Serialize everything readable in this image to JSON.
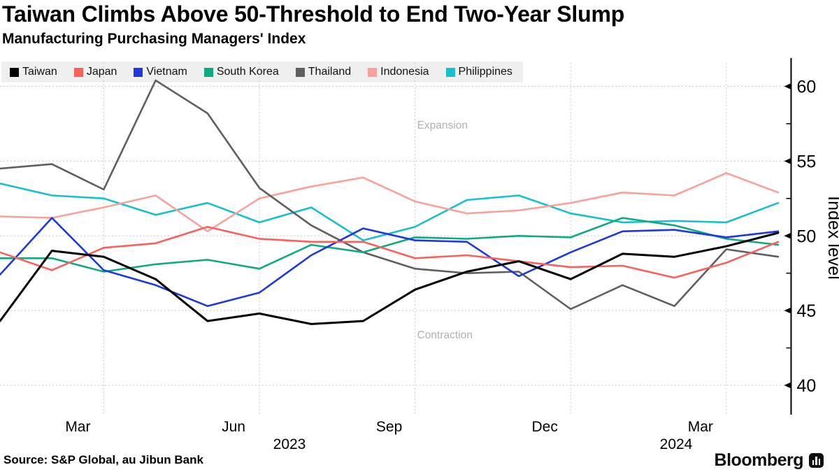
{
  "title": "Taiwan Climbs Above 50-Threshold to End Two-Year Slump",
  "subtitle": "Manufacturing Purchasing Managers' Index",
  "legend": [
    {
      "label": "Taiwan",
      "color": "#000000"
    },
    {
      "label": "Japan",
      "color": "#f9615b"
    },
    {
      "label": "Vietnam",
      "color": "#1c39e0"
    },
    {
      "label": "South Korea",
      "color": "#0faa82"
    },
    {
      "label": "Thailand",
      "color": "#5f5f5f"
    },
    {
      "label": "Indonesia",
      "color": "#f9a29b"
    },
    {
      "label": "Philippines",
      "color": "#16c0cd"
    }
  ],
  "annotations": {
    "expansion": "Expansion",
    "contraction": "Contraction"
  },
  "y_axis": {
    "label": "Index level",
    "major_ticks": [
      60,
      55,
      50,
      45,
      40
    ],
    "minor_ticks": [
      57.5,
      52.5,
      47.5,
      42.5
    ]
  },
  "x_axis": {
    "month_ticks": [
      {
        "label": "Mar",
        "month_index": 2
      },
      {
        "label": "Jun",
        "month_index": 5
      },
      {
        "label": "Sep",
        "month_index": 8
      },
      {
        "label": "Dec",
        "month_index": 11
      },
      {
        "label": "Mar",
        "month_index": 14
      }
    ],
    "year_labels": [
      {
        "label": "2023",
        "x": 414
      },
      {
        "label": "2024",
        "x": 967
      }
    ]
  },
  "source": "Source: S&P Global, au Jibun Bank",
  "brand": "Bloomberg",
  "chart_data": {
    "type": "line",
    "x": [
      "2023-01",
      "2023-02",
      "2023-03",
      "2023-04",
      "2023-05",
      "2023-06",
      "2023-07",
      "2023-08",
      "2023-09",
      "2023-10",
      "2023-11",
      "2023-12",
      "2024-01",
      "2024-02",
      "2024-03",
      "2024-04"
    ],
    "series": [
      {
        "name": "Taiwan",
        "color": "#000000",
        "values": [
          44.3,
          49.0,
          48.6,
          47.1,
          44.3,
          44.8,
          44.1,
          44.3,
          46.4,
          47.6,
          48.3,
          47.1,
          48.8,
          48.6,
          49.3,
          50.2
        ]
      },
      {
        "name": "Japan",
        "color": "#f9615b",
        "values": [
          48.9,
          47.7,
          49.2,
          49.5,
          50.6,
          49.8,
          49.6,
          49.6,
          48.5,
          48.7,
          48.3,
          47.9,
          48.0,
          47.2,
          48.2,
          49.6
        ]
      },
      {
        "name": "Vietnam",
        "color": "#1c39e0",
        "values": [
          47.4,
          51.2,
          47.7,
          46.7,
          45.3,
          46.2,
          48.7,
          50.5,
          49.7,
          49.6,
          47.3,
          48.9,
          50.3,
          50.4,
          49.9,
          50.3
        ]
      },
      {
        "name": "South Korea",
        "color": "#0faa82",
        "values": [
          48.5,
          48.5,
          47.6,
          48.1,
          48.4,
          47.8,
          49.4,
          48.9,
          49.9,
          49.8,
          50.0,
          49.9,
          51.2,
          50.7,
          49.8,
          49.4
        ]
      },
      {
        "name": "Thailand",
        "color": "#5f5f5f",
        "values": [
          54.5,
          54.8,
          53.1,
          60.4,
          58.2,
          53.2,
          50.7,
          48.9,
          47.8,
          47.5,
          47.6,
          45.1,
          46.7,
          45.3,
          49.1,
          48.6
        ]
      },
      {
        "name": "Indonesia",
        "color": "#f9a29b",
        "values": [
          51.3,
          51.2,
          51.9,
          52.7,
          50.3,
          52.5,
          53.3,
          53.9,
          52.3,
          51.5,
          51.7,
          52.2,
          52.9,
          52.7,
          54.2,
          52.9
        ]
      },
      {
        "name": "Philippines",
        "color": "#16c0cd",
        "values": [
          53.5,
          52.7,
          52.5,
          51.4,
          52.2,
          50.9,
          51.9,
          49.7,
          50.6,
          52.4,
          52.7,
          51.5,
          50.9,
          51.0,
          50.9,
          52.2
        ]
      }
    ],
    "title": "Taiwan Climbs Above 50-Threshold to End Two-Year Slump",
    "subtitle": "Manufacturing Purchasing Managers' Index",
    "ylabel": "Index level",
    "ylim": [
      38,
      61.5
    ],
    "grid": true,
    "legend_position": "top",
    "region_labels": [
      "Expansion",
      "Contraction"
    ]
  }
}
